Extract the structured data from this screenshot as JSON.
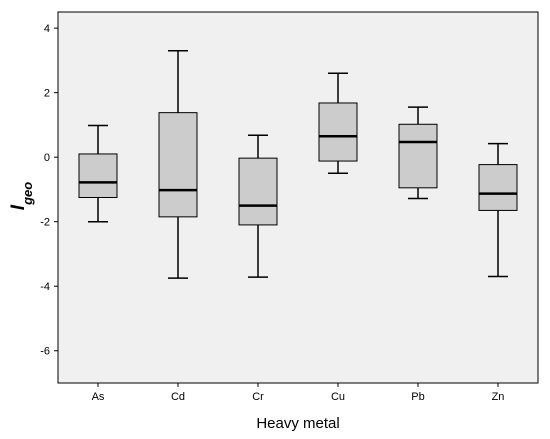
{
  "chart_data": {
    "type": "boxplot",
    "xlabel": "Heavy metal",
    "ylabel_main": "I",
    "ylabel_sub": "geo",
    "ylim": [
      -7,
      4.5
    ],
    "yticks": [
      -6,
      -4,
      -2,
      0,
      2,
      4
    ],
    "grid": false,
    "colors": {
      "plot_bg": "#f0f0f0",
      "box_fill": "#cccccc",
      "stroke": "#000000"
    },
    "categories": [
      "As",
      "Cd",
      "Cr",
      "Cu",
      "Pb",
      "Zn"
    ],
    "boxes": [
      {
        "category": "As",
        "min": -2.0,
        "q1": -1.25,
        "median": -0.78,
        "q3": 0.1,
        "max": 0.98
      },
      {
        "category": "Cd",
        "min": -3.75,
        "q1": -1.85,
        "median": -1.02,
        "q3": 1.38,
        "max": 3.3
      },
      {
        "category": "Cr",
        "min": -3.72,
        "q1": -2.1,
        "median": -1.5,
        "q3": -0.03,
        "max": 0.68
      },
      {
        "category": "Cu",
        "min": -0.5,
        "q1": -0.12,
        "median": 0.65,
        "q3": 1.68,
        "max": 2.6
      },
      {
        "category": "Pb",
        "min": -1.28,
        "q1": -0.95,
        "median": 0.47,
        "q3": 1.02,
        "max": 1.55
      },
      {
        "category": "Zn",
        "min": -3.7,
        "q1": -1.65,
        "median": -1.13,
        "q3": -0.23,
        "max": 0.42
      }
    ]
  }
}
